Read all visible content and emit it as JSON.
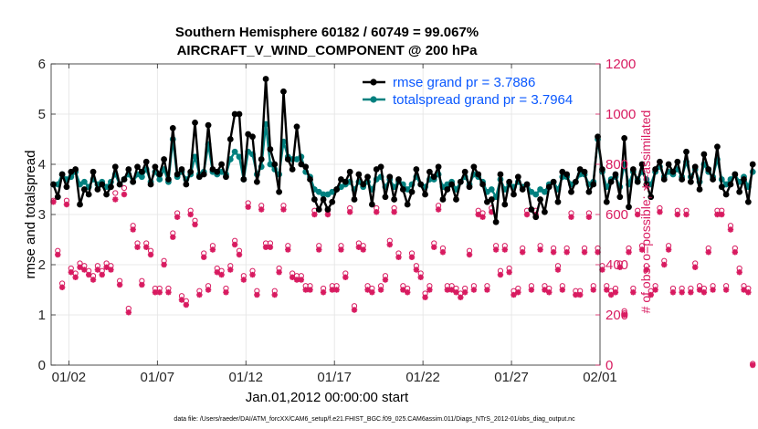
{
  "chart_data": {
    "type": "line",
    "title": "Southern Hemisphere 60182 / 60749 = 99.067%",
    "subtitle": "AIRCRAFT_V_WIND_COMPONENT @ 200 hPa",
    "xlabel": "Jan.01,2012 00:00:00 start",
    "ylabel": "rmse and totalspread",
    "ylabel_right": "# of obs: o=possible; ∗=assimilated",
    "footer": "data file: /Users/raeder/DAI/ATM_forcXX/CAM6_setup/f.e21.FHIST_BGC.f09_025.CAM6assim.011/Diags_NTrS_2012-01/obs_diag_output.nc",
    "xlim": [
      0.5,
      31.5
    ],
    "ylim": [
      0,
      6
    ],
    "ylim_right": [
      0,
      1200
    ],
    "x_ticks": [
      1.5,
      6.5,
      11.5,
      16.5,
      21.5,
      26.5,
      31.5
    ],
    "x_tick_labels": [
      "01/02",
      "01/07",
      "01/12",
      "01/17",
      "01/22",
      "01/27",
      "02/01"
    ],
    "y_ticks": [
      0,
      1,
      2,
      3,
      4,
      5,
      6
    ],
    "y_tick_labels": [
      "0",
      "1",
      "2",
      "3",
      "4",
      "5",
      "6"
    ],
    "y_right_ticks": [
      0,
      200,
      400,
      600,
      800,
      1000,
      1200
    ],
    "y_right_tick_labels": [
      "0",
      "200",
      "400",
      "600",
      "800",
      "1000",
      "1200"
    ],
    "grid": true,
    "legend_position": "top-right",
    "colors": {
      "rmse": "#000000",
      "spread": "#00807f",
      "obs": "#d81b60",
      "legend_text": "#0a58ff"
    },
    "x_step": 0.25,
    "x_start": 0.625,
    "series": [
      {
        "name": "rmse",
        "label": "rmse grand pr = 3.7886",
        "values": [
          3.6,
          3.35,
          3.8,
          3.55,
          3.85,
          3.9,
          3.2,
          3.5,
          3.4,
          3.85,
          3.5,
          3.6,
          3.4,
          3.55,
          3.95,
          3.6,
          3.7,
          3.9,
          3.65,
          3.95,
          3.85,
          4.05,
          3.6,
          3.95,
          3.8,
          4.1,
          3.7,
          4.72,
          3.8,
          3.9,
          3.6,
          3.85,
          4.83,
          3.75,
          3.8,
          4.78,
          3.9,
          3.85,
          4.0,
          3.75,
          4.5,
          5.0,
          5.0,
          3.7,
          4.6,
          4.55,
          3.65,
          4.1,
          5.7,
          4.3,
          4.0,
          3.45,
          5.45,
          4.1,
          3.9,
          4.75,
          4.0,
          3.95,
          3.7,
          3.3,
          3.1,
          3.3,
          3.1,
          3.25,
          3.5,
          3.7,
          3.65,
          3.85,
          3.3,
          3.8,
          3.6,
          3.75,
          3.2,
          3.9,
          3.95,
          3.35,
          3.75,
          3.3,
          3.7,
          3.5,
          3.2,
          3.45,
          3.9,
          3.6,
          3.4,
          3.85,
          3.75,
          3.95,
          3.3,
          3.5,
          3.6,
          3.3,
          3.65,
          3.85,
          3.55,
          3.95,
          3.8,
          3.6,
          3.25,
          3.3,
          2.85,
          3.8,
          3.2,
          3.65,
          3.4,
          3.75,
          3.5,
          3.6,
          3.1,
          2.95,
          3.3,
          3.05,
          3.55,
          3.65,
          3.25,
          3.85,
          3.8,
          3.45,
          3.65,
          3.9,
          3.85,
          3.45,
          3.6,
          4.55,
          3.9,
          3.25,
          3.65,
          3.8,
          3.35,
          4.52,
          3.15,
          3.9,
          3.65,
          4.0,
          3.6,
          3.35,
          3.9,
          4.05,
          3.7,
          4.0,
          3.85,
          4.05,
          3.7,
          4.25,
          3.65,
          3.95,
          3.5,
          4.2,
          3.9,
          3.7,
          4.35,
          3.55,
          3.4,
          3.6,
          3.8,
          3.45,
          3.7,
          3.25,
          4.0
        ]
      },
      {
        "name": "totalspread",
        "label": "totalspread grand pr = 3.7964",
        "values": [
          3.6,
          3.6,
          3.8,
          3.7,
          3.75,
          3.85,
          3.6,
          3.65,
          3.55,
          3.7,
          3.6,
          3.65,
          3.55,
          3.65,
          3.8,
          3.6,
          3.7,
          3.8,
          3.65,
          3.8,
          3.75,
          3.9,
          3.65,
          3.85,
          3.7,
          3.9,
          3.65,
          4.5,
          3.75,
          3.85,
          3.7,
          3.8,
          4.15,
          3.8,
          3.85,
          4.4,
          3.85,
          3.8,
          3.85,
          3.8,
          4.1,
          4.25,
          4.15,
          3.7,
          4.25,
          4.2,
          3.8,
          3.95,
          4.8,
          4.0,
          3.9,
          3.8,
          4.45,
          4.15,
          4.1,
          4.1,
          4.15,
          3.85,
          3.75,
          3.5,
          3.45,
          3.4,
          3.4,
          3.45,
          3.5,
          3.55,
          3.6,
          3.65,
          3.5,
          3.65,
          3.55,
          3.65,
          3.5,
          3.7,
          3.75,
          3.55,
          3.7,
          3.55,
          3.65,
          3.6,
          3.5,
          3.6,
          3.75,
          3.6,
          3.55,
          3.7,
          3.7,
          3.8,
          3.55,
          3.6,
          3.65,
          3.5,
          3.65,
          3.75,
          3.6,
          3.8,
          3.75,
          3.65,
          3.45,
          3.5,
          3.35,
          3.7,
          3.5,
          3.6,
          3.55,
          3.65,
          3.55,
          3.6,
          3.45,
          3.4,
          3.5,
          3.45,
          3.6,
          3.65,
          3.5,
          3.75,
          3.75,
          3.6,
          3.65,
          3.8,
          3.8,
          3.6,
          3.65,
          4.5,
          3.85,
          3.55,
          3.7,
          3.75,
          3.55,
          4.0,
          3.6,
          3.85,
          3.7,
          3.85,
          3.7,
          3.6,
          3.85,
          3.95,
          3.75,
          3.85,
          3.8,
          3.9,
          3.75,
          4.05,
          3.75,
          3.9,
          3.65,
          4.0,
          3.85,
          3.75,
          4.1,
          3.7,
          3.6,
          3.7,
          3.8,
          3.65,
          3.75,
          3.55,
          3.85
        ]
      },
      {
        "name": "obs_possible",
        "values": [
          650,
          450,
          320,
          650,
          380,
          360,
          400,
          390,
          370,
          350,
          390,
          370,
          400,
          390,
          680,
          330,
          700,
          220,
          550,
          480,
          330,
          480,
          450,
          300,
          300,
          410,
          300,
          520,
          600,
          270,
          250,
          610,
          570,
          290,
          440,
          310,
          470,
          380,
          370,
          300,
          390,
          490,
          450,
          350,
          640,
          370,
          290,
          630,
          480,
          480,
          290,
          380,
          630,
          470,
          360,
          350,
          350,
          310,
          310,
          610,
          470,
          300,
          610,
          310,
          310,
          470,
          360,
          620,
          230,
          480,
          470,
          310,
          300,
          620,
          310,
          350,
          490,
          620,
          440,
          310,
          300,
          440,
          390,
          360,
          280,
          310,
          480,
          630,
          460,
          310,
          310,
          300,
          280,
          300,
          450,
          310,
          610,
          600,
          310,
          620,
          470,
          370,
          470,
          380,
          290,
          300,
          460,
          610,
          310,
          610,
          470,
          310,
          300,
          460,
          390,
          310,
          460,
          600,
          290,
          290,
          460,
          600,
          310,
          460,
          390,
          310,
          290,
          300,
          400,
          210,
          460,
          300,
          610,
          470,
          390,
          290,
          310,
          620,
          410,
          470,
          300,
          610,
          300,
          610,
          300,
          400,
          310,
          300,
          460,
          310,
          610,
          610,
          310,
          550,
          460,
          380,
          310,
          300,
          0
        ]
      },
      {
        "name": "obs_assimilated",
        "values": [
          650,
          440,
          310,
          640,
          370,
          350,
          390,
          380,
          360,
          340,
          380,
          360,
          390,
          380,
          660,
          320,
          680,
          210,
          540,
          470,
          320,
          470,
          440,
          290,
          290,
          400,
          290,
          510,
          590,
          260,
          240,
          600,
          560,
          280,
          430,
          300,
          460,
          370,
          360,
          290,
          380,
          480,
          440,
          340,
          630,
          360,
          280,
          620,
          470,
          470,
          280,
          370,
          620,
          460,
          350,
          340,
          340,
          300,
          300,
          600,
          460,
          290,
          600,
          300,
          300,
          460,
          350,
          610,
          220,
          470,
          460,
          300,
          290,
          610,
          300,
          340,
          480,
          610,
          430,
          300,
          290,
          430,
          380,
          350,
          270,
          300,
          470,
          620,
          450,
          300,
          300,
          290,
          270,
          290,
          440,
          300,
          600,
          590,
          300,
          610,
          460,
          360,
          460,
          370,
          280,
          290,
          450,
          600,
          300,
          600,
          460,
          300,
          290,
          450,
          380,
          300,
          450,
          590,
          280,
          280,
          450,
          590,
          300,
          450,
          380,
          300,
          280,
          290,
          390,
          200,
          450,
          290,
          600,
          460,
          380,
          280,
          300,
          610,
          400,
          460,
          290,
          600,
          290,
          600,
          290,
          390,
          300,
          290,
          450,
          300,
          600,
          600,
          300,
          540,
          450,
          370,
          300,
          290,
          0
        ]
      }
    ]
  }
}
